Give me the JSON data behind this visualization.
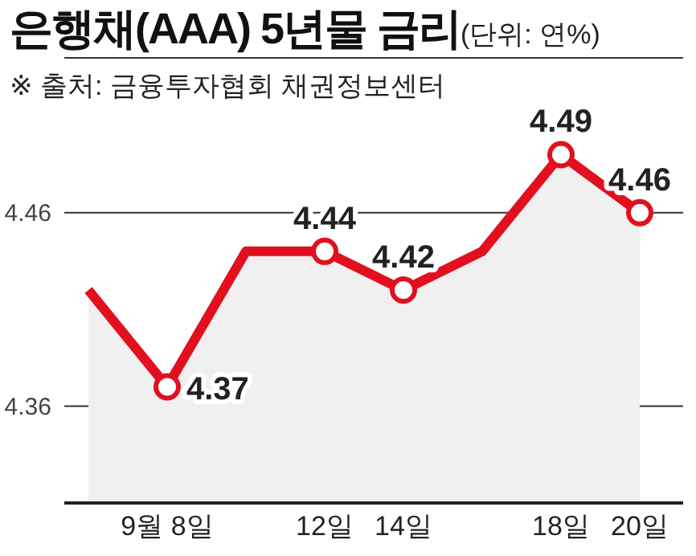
{
  "chart_data": {
    "type": "area",
    "title": "은행채(AAA) 5년물 금리",
    "subtitle": "(단위: 연%)",
    "annotations": [
      "※ 출처: 금융투자협회 채권정보센터"
    ],
    "categories": [
      null,
      "9월 8일",
      null,
      "12일",
      "14일",
      null,
      "18일",
      "20일"
    ],
    "series": [
      {
        "color": "#e2101e",
        "values": [
          4.42,
          4.37,
          4.44,
          4.44,
          4.42,
          4.44,
          4.49,
          4.46
        ],
        "value_labels": [
          null,
          "4.37",
          null,
          "4.44",
          "4.42",
          null,
          "4.49",
          "4.46"
        ]
      }
    ],
    "ylim": [
      4.31,
      4.54
    ],
    "yticks": [
      4.36,
      4.46
    ],
    "grid": "y",
    "marker": "circle",
    "line_style": "solid"
  }
}
